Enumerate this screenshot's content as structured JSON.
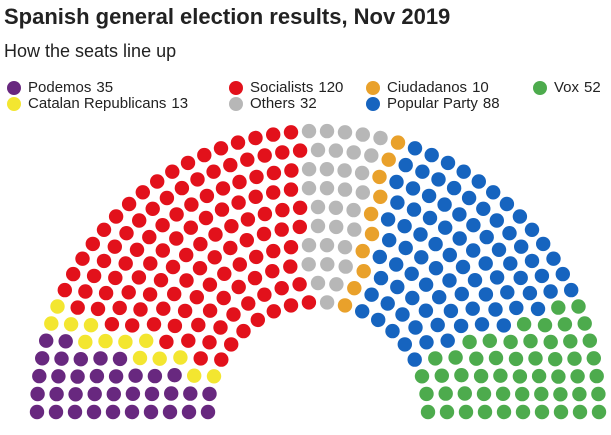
{
  "chart_data": {
    "type": "parliament",
    "title": "Spanish general election results, Nov 2019",
    "subtitle": "How the seats line up",
    "series": [
      {
        "name": "Podemos",
        "value": 35,
        "color": "#68287f"
      },
      {
        "name": "Catalan Republicans",
        "value": 13,
        "color": "#f3e630"
      },
      {
        "name": "Socialists",
        "value": 120,
        "color": "#e2111b"
      },
      {
        "name": "Others",
        "value": 32,
        "color": "#b7b7b7"
      },
      {
        "name": "Ciudadanos",
        "value": 10,
        "color": "#e9a12b"
      },
      {
        "name": "Popular Party",
        "value": 88,
        "color": "#1664bf"
      },
      {
        "name": "Vox",
        "value": 52,
        "color": "#4dab4d"
      }
    ]
  }
}
